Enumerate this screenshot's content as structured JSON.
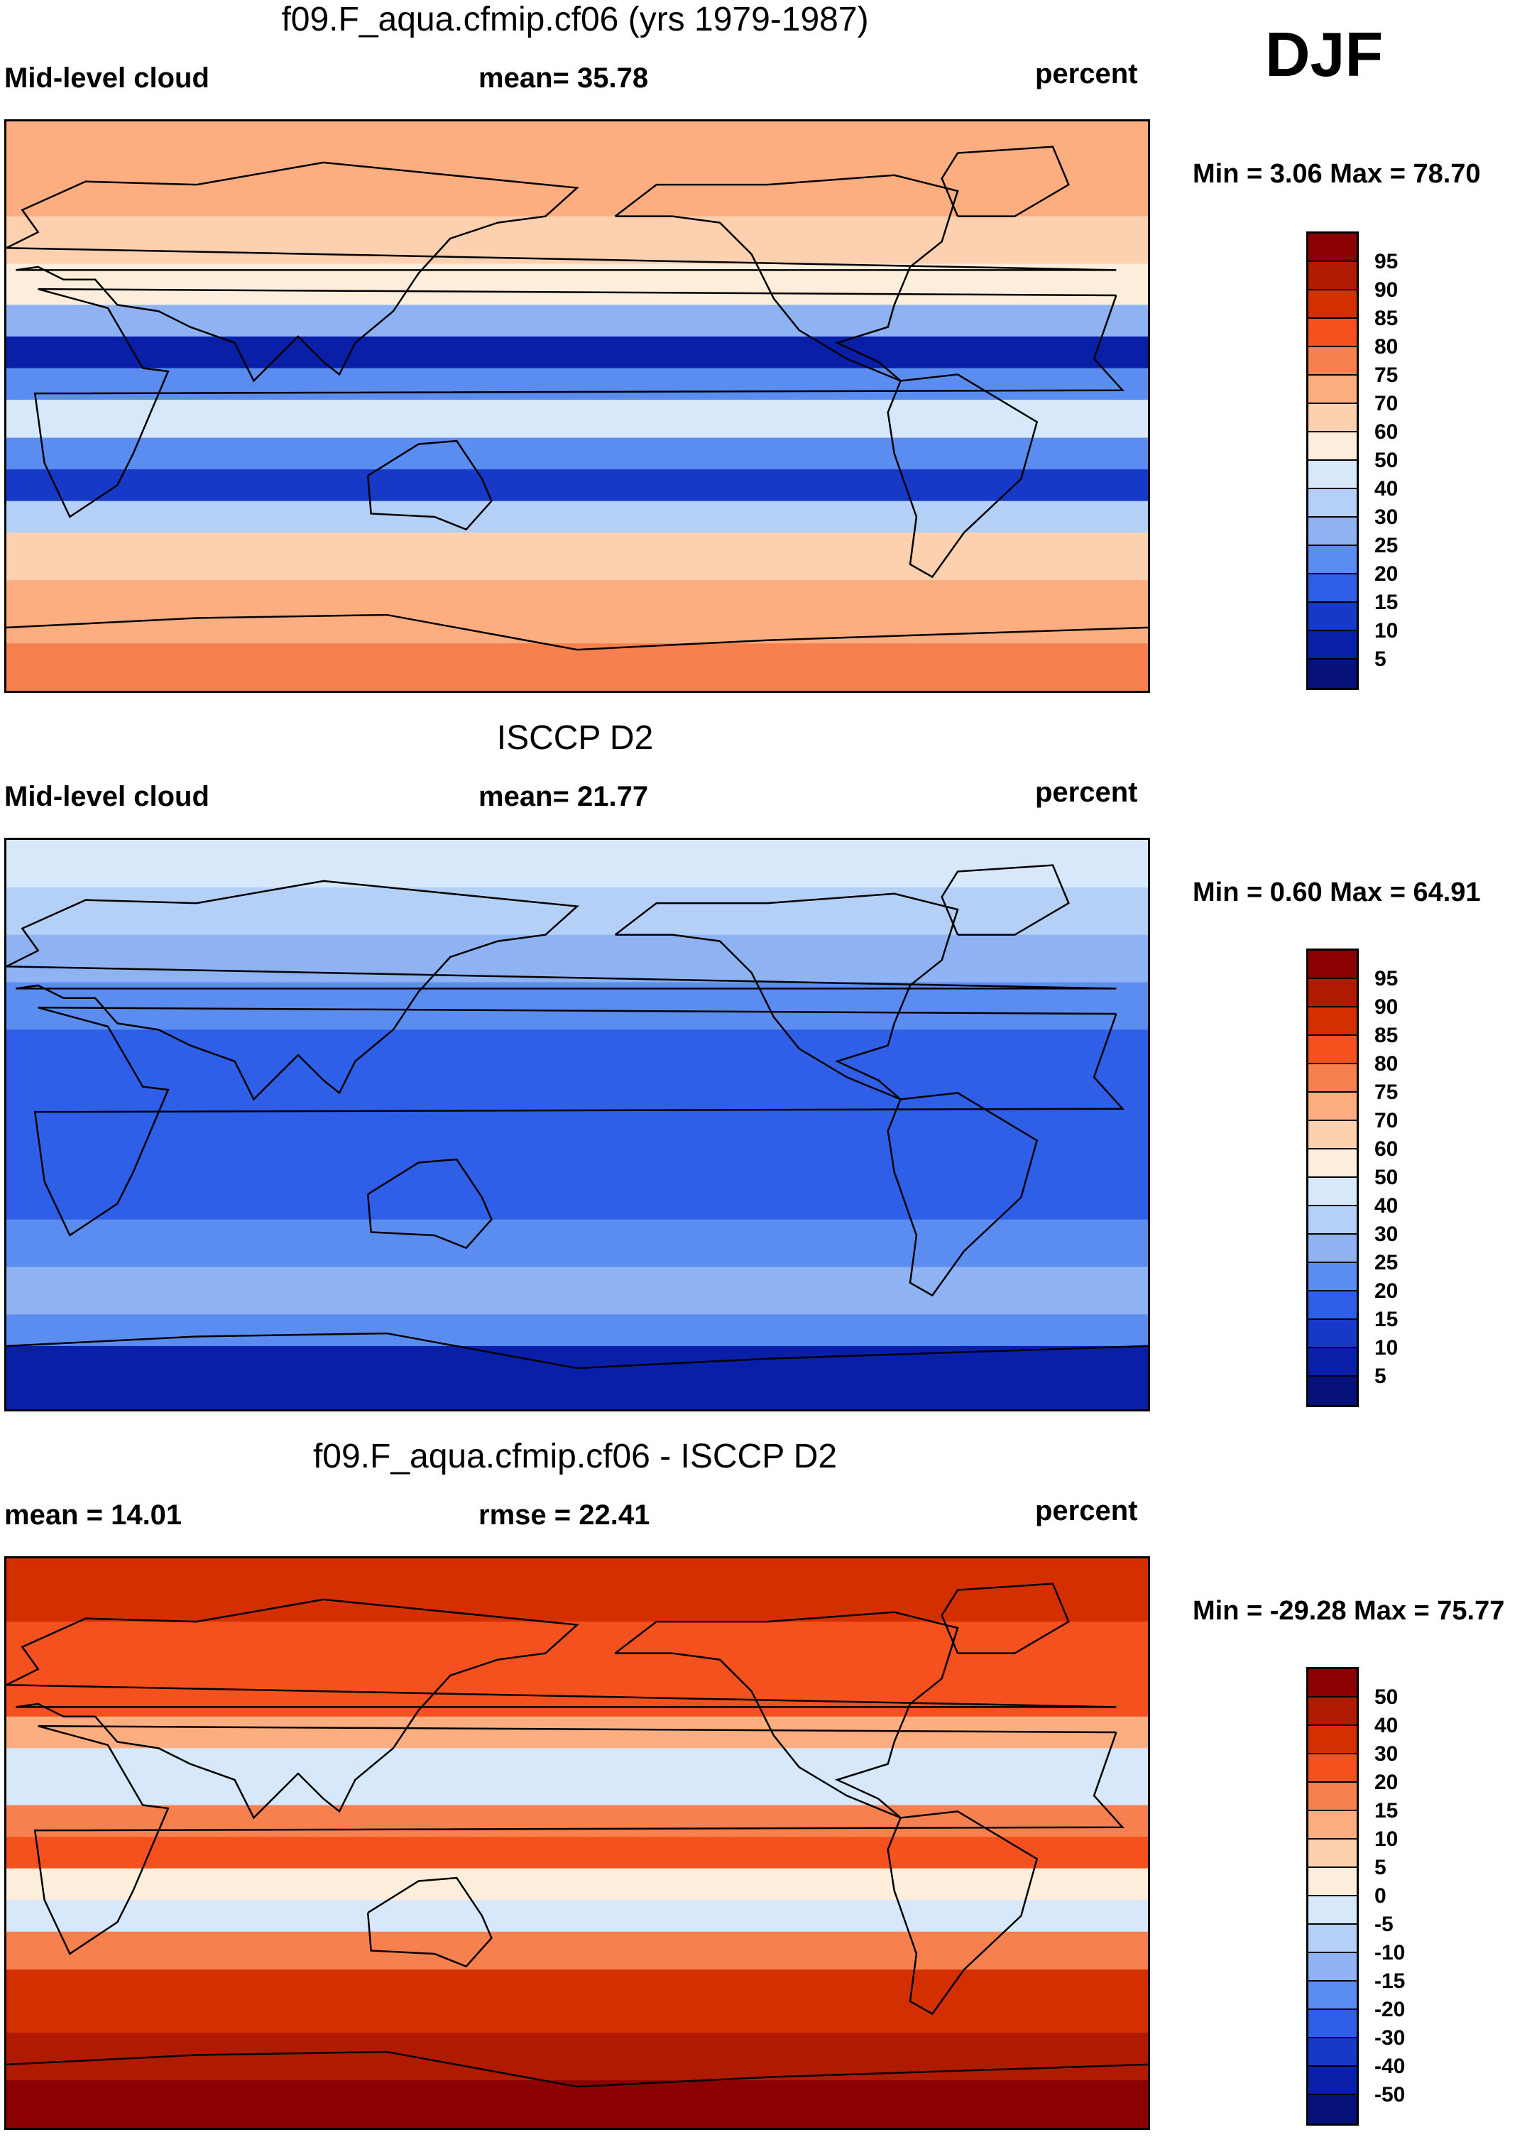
{
  "season": "DJF",
  "panels": [
    {
      "title": "f09.F_aqua.cfmip.cf06 (yrs 1979-1987)",
      "left": "Mid-level cloud",
      "center": "mean=  35.78",
      "right": "percent",
      "minmax": "Min =   3.06 Max =  78.70",
      "levels": [
        "95",
        "90",
        "85",
        "80",
        "75",
        "70",
        "60",
        "50",
        "40",
        "30",
        "25",
        "20",
        "15",
        "10",
        "5"
      ],
      "colors": [
        "#8b0000",
        "#b01a00",
        "#d42f00",
        "#f4511e",
        "#f7804f",
        "#fcae80",
        "#fdd0b0",
        "#fdeedc",
        "#d7e8fa",
        "#b4d0f7",
        "#8fb3f2",
        "#5b8cf0",
        "#2e5fe6",
        "#1639c8",
        "#0a1fa8",
        "#06117a"
      ],
      "map": {
        "bands": [
          {
            "lat": 90,
            "v": 70
          },
          {
            "lat": 75,
            "v": 75
          },
          {
            "lat": 60,
            "v": 70
          },
          {
            "lat": 45,
            "v": 60
          },
          {
            "lat": 32,
            "v": 40
          },
          {
            "lat": 22,
            "v": 10
          },
          {
            "lat": 12,
            "v": 5
          },
          {
            "lat": 2,
            "v": 40
          },
          {
            "lat": -10,
            "v": 40
          },
          {
            "lat": -20,
            "v": 5
          },
          {
            "lat": -30,
            "v": 15
          },
          {
            "lat": -40,
            "v": 50
          },
          {
            "lat": -55,
            "v": 70
          },
          {
            "lat": -75,
            "v": 75
          },
          {
            "lat": -90,
            "v": 75
          }
        ]
      }
    },
    {
      "title": "ISCCP D2",
      "left": "Mid-level cloud",
      "center": "mean=  21.77",
      "right": "percent",
      "minmax": "Min =   0.60 Max =  64.91",
      "levels": [
        "95",
        "90",
        "85",
        "80",
        "75",
        "70",
        "60",
        "50",
        "40",
        "30",
        "25",
        "20",
        "15",
        "10",
        "5"
      ],
      "colors": [
        "#8b0000",
        "#b01a00",
        "#d42f00",
        "#f4511e",
        "#f7804f",
        "#fcae80",
        "#fdd0b0",
        "#fdeedc",
        "#d7e8fa",
        "#b4d0f7",
        "#8fb3f2",
        "#5b8cf0",
        "#2e5fe6",
        "#1639c8",
        "#0a1fa8",
        "#06117a"
      ],
      "map": {
        "bands": [
          {
            "lat": 90,
            "v": 50
          },
          {
            "lat": 75,
            "v": 40
          },
          {
            "lat": 60,
            "v": 30
          },
          {
            "lat": 45,
            "v": 25
          },
          {
            "lat": 30,
            "v": 20
          },
          {
            "lat": 15,
            "v": 15
          },
          {
            "lat": 0,
            "v": 20
          },
          {
            "lat": -15,
            "v": 15
          },
          {
            "lat": -30,
            "v": 20
          },
          {
            "lat": -45,
            "v": 25
          },
          {
            "lat": -60,
            "v": 30
          },
          {
            "lat": -70,
            "v": 10
          },
          {
            "lat": -90,
            "v": 5
          }
        ]
      }
    },
    {
      "title": "f09.F_aqua.cfmip.cf06 - ISCCP D2",
      "left": "mean =  14.01",
      "center": "rmse =  22.41",
      "right": "percent",
      "minmax": "Min = -29.28 Max =  75.77",
      "levels": [
        "50",
        "40",
        "30",
        "20",
        "15",
        "10",
        "5",
        "0",
        "-5",
        "-10",
        "-15",
        "-20",
        "-30",
        "-40",
        "-50"
      ],
      "colors": [
        "#8b0000",
        "#b01a00",
        "#d42f00",
        "#f4511e",
        "#f7804f",
        "#fcae80",
        "#fdd0b0",
        "#fdeedc",
        "#d7e8fa",
        "#b4d0f7",
        "#8fb3f2",
        "#5b8cf0",
        "#2e5fe6",
        "#1639c8",
        "#0a1fa8",
        "#06117a"
      ],
      "map": {
        "bands": [
          {
            "lat": 90,
            "v": 30
          },
          {
            "lat": 70,
            "v": 30
          },
          {
            "lat": 55,
            "v": 20
          },
          {
            "lat": 40,
            "v": 20
          },
          {
            "lat": 30,
            "v": 0
          },
          {
            "lat": 22,
            "v": -10
          },
          {
            "lat": 12,
            "v": 5
          },
          {
            "lat": 2,
            "v": 30
          },
          {
            "lat": -8,
            "v": 15
          },
          {
            "lat": -18,
            "v": -10
          },
          {
            "lat": -28,
            "v": 0
          },
          {
            "lat": -40,
            "v": 30
          },
          {
            "lat": -60,
            "v": 30
          },
          {
            "lat": -75,
            "v": 50
          },
          {
            "lat": -90,
            "v": 50
          }
        ]
      }
    }
  ]
}
